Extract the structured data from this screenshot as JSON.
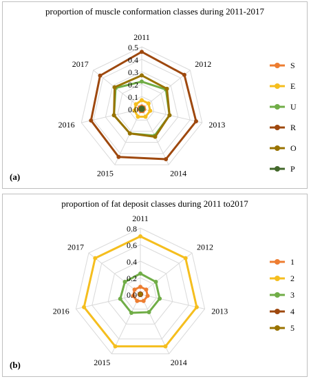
{
  "chart_data": [
    {
      "panel": "(a)",
      "type": "radar",
      "title": "proportion of muscle conformation classes during 2011-2017",
      "categories": [
        "2011",
        "2012",
        "2013",
        "2014",
        "2015",
        "2016",
        "2017"
      ],
      "ticks": [
        "0.0",
        "0.1",
        "0.2",
        "0.3",
        "0.4",
        "0.5"
      ],
      "rmax": 0.5,
      "grid": true,
      "legend": "right",
      "series": [
        {
          "name": "S",
          "color": "#ED7D31",
          "values": [
            0.02,
            0.02,
            0.02,
            0.02,
            0.02,
            0.02,
            0.02
          ]
        },
        {
          "name": "E",
          "color": "#F5BE1E",
          "values": [
            0.07,
            0.07,
            0.07,
            0.07,
            0.07,
            0.06,
            0.06
          ]
        },
        {
          "name": "U",
          "color": "#70AD47",
          "values": [
            0.22,
            0.25,
            0.23,
            0.24,
            0.22,
            0.23,
            0.27
          ]
        },
        {
          "name": "R",
          "color": "#9E480E",
          "values": [
            0.46,
            0.44,
            0.45,
            0.45,
            0.43,
            0.42,
            0.43
          ]
        },
        {
          "name": "O",
          "color": "#997300",
          "values": [
            0.27,
            0.26,
            0.23,
            0.25,
            0.22,
            0.23,
            0.28
          ]
        },
        {
          "name": "P",
          "color": "#43682B",
          "values": [
            0.01,
            0.01,
            0.01,
            0.01,
            0.01,
            0.01,
            0.01
          ]
        }
      ]
    },
    {
      "panel": "(b)",
      "type": "radar",
      "title": "proportion of fat deposit classes during 2011 to2017",
      "categories": [
        "2011",
        "2012",
        "2013",
        "2014",
        "2015",
        "2016",
        "2017"
      ],
      "ticks": [
        "0.0",
        "0.2",
        "0.4",
        "0.6",
        "0.8"
      ],
      "rmax": 0.8,
      "grid": true,
      "legend": "right",
      "series": [
        {
          "name": "1",
          "color": "#ED7D31",
          "values": [
            0.09,
            0.09,
            0.09,
            0.09,
            0.09,
            0.09,
            0.09
          ]
        },
        {
          "name": "2",
          "color": "#F5BE1E",
          "values": [
            0.7,
            0.7,
            0.7,
            0.7,
            0.7,
            0.7,
            0.7
          ]
        },
        {
          "name": "3",
          "color": "#70AD47",
          "values": [
            0.25,
            0.24,
            0.24,
            0.24,
            0.25,
            0.25,
            0.24
          ]
        },
        {
          "name": "4",
          "color": "#9E480E",
          "values": [
            0.01,
            0.01,
            0.01,
            0.01,
            0.01,
            0.01,
            0.01
          ]
        },
        {
          "name": "5",
          "color": "#997300",
          "values": [
            0.0,
            0.0,
            0.0,
            0.0,
            0.0,
            0.0,
            0.0
          ]
        }
      ]
    }
  ]
}
